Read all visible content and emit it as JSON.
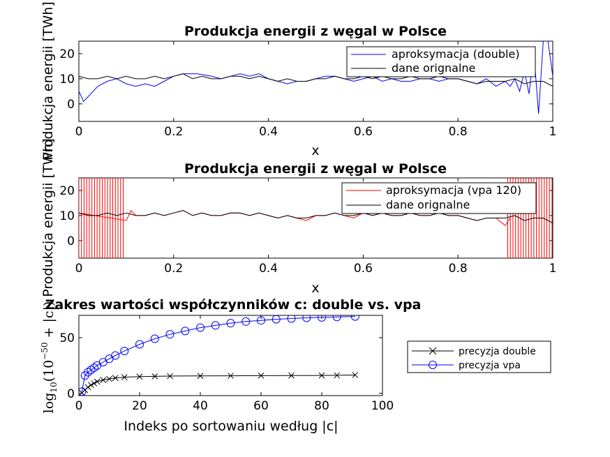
{
  "figure": {
    "background": "#ffffff"
  },
  "chart_data": [
    {
      "type": "line",
      "title": "Produkcja energii z węgal w Polsce",
      "xlabel": "x",
      "ylabel": "Produkcja energii [TWh]",
      "xlim": [
        0,
        1
      ],
      "ylim": [
        -7,
        25
      ],
      "xticks": [
        0,
        0.2,
        0.4,
        0.6,
        0.8,
        1
      ],
      "xtick_labels": [
        "0",
        "0.2",
        "0.4",
        "0.6",
        "0.8",
        "1"
      ],
      "yticks": [
        0,
        10,
        20
      ],
      "ytick_labels": [
        "0",
        "10",
        "20"
      ],
      "legend": "top-right",
      "series": [
        {
          "name": "aproksymacja (double)",
          "color": "#0000ff",
          "x": [
            0,
            0.01,
            0.02,
            0.04,
            0.06,
            0.08,
            0.1,
            0.12,
            0.14,
            0.16,
            0.18,
            0.2,
            0.22,
            0.25,
            0.28,
            0.3,
            0.32,
            0.34,
            0.36,
            0.38,
            0.4,
            0.42,
            0.44,
            0.46,
            0.48,
            0.5,
            0.52,
            0.54,
            0.56,
            0.58,
            0.6,
            0.62,
            0.64,
            0.66,
            0.68,
            0.7,
            0.72,
            0.74,
            0.76,
            0.78,
            0.8,
            0.82,
            0.84,
            0.86,
            0.88,
            0.9,
            0.91,
            0.92,
            0.93,
            0.94,
            0.95,
            0.96,
            0.97,
            0.98,
            0.99,
            1.0
          ],
          "y": [
            5,
            1,
            3,
            7,
            9,
            10,
            8,
            7,
            8,
            7,
            9,
            11,
            12,
            12,
            11,
            10,
            11,
            12,
            11,
            12,
            10,
            9,
            8,
            9,
            9,
            10,
            11,
            11,
            10,
            9,
            10,
            11,
            9,
            10,
            9,
            9,
            10,
            10,
            9,
            10,
            10,
            9,
            8,
            10,
            7,
            9,
            7,
            10,
            5,
            13,
            4,
            21,
            -4,
            25,
            25,
            11
          ]
        },
        {
          "name": "dane orignalne",
          "color": "#000000",
          "x": [
            0,
            0.02,
            0.04,
            0.06,
            0.08,
            0.1,
            0.12,
            0.14,
            0.16,
            0.18,
            0.2,
            0.22,
            0.24,
            0.26,
            0.28,
            0.3,
            0.32,
            0.34,
            0.36,
            0.38,
            0.4,
            0.42,
            0.44,
            0.46,
            0.48,
            0.5,
            0.52,
            0.54,
            0.56,
            0.58,
            0.6,
            0.62,
            0.64,
            0.66,
            0.68,
            0.7,
            0.72,
            0.74,
            0.76,
            0.78,
            0.8,
            0.82,
            0.84,
            0.86,
            0.88,
            0.9,
            0.92,
            0.94,
            0.96,
            0.98,
            1.0
          ],
          "y": [
            11,
            10,
            10,
            11,
            10,
            11,
            10,
            10,
            11,
            10,
            11,
            12,
            10,
            11,
            10,
            10,
            11,
            11,
            10,
            11,
            10,
            9,
            10,
            9,
            9,
            10,
            10,
            11,
            10,
            10,
            11,
            10,
            11,
            10,
            10,
            11,
            10,
            10,
            11,
            10,
            10,
            9,
            8,
            9,
            9,
            9,
            10,
            8,
            9,
            9,
            7
          ]
        }
      ]
    },
    {
      "type": "line",
      "title": "Produkcja energii z węgal w Polsce",
      "xlabel": "x",
      "ylabel": "Produkcja energii [TWh]",
      "xlim": [
        0,
        1
      ],
      "ylim": [
        -7,
        25
      ],
      "xticks": [
        0,
        0.2,
        0.4,
        0.6,
        0.8,
        1
      ],
      "xtick_labels": [
        "0",
        "0.2",
        "0.4",
        "0.6",
        "0.8",
        "1"
      ],
      "yticks": [
        0,
        10,
        20
      ],
      "ytick_labels": [
        "0",
        "10",
        "20"
      ],
      "legend": "top-right",
      "series": [
        {
          "name": "aproksymacja (vpa 120)",
          "color": "#ff0000",
          "x": [
            0,
            0.1,
            0.11,
            0.12,
            0.14,
            0.16,
            0.18,
            0.2,
            0.22,
            0.24,
            0.26,
            0.28,
            0.3,
            0.32,
            0.34,
            0.36,
            0.38,
            0.4,
            0.42,
            0.44,
            0.46,
            0.48,
            0.5,
            0.52,
            0.54,
            0.56,
            0.58,
            0.6,
            0.62,
            0.64,
            0.66,
            0.68,
            0.7,
            0.72,
            0.74,
            0.76,
            0.78,
            0.8,
            0.82,
            0.84,
            0.86,
            0.88,
            0.9,
            0.91
          ],
          "y": [
            11,
            8,
            12,
            10,
            10,
            11,
            10,
            11,
            12,
            10,
            11,
            10,
            10,
            11,
            11,
            10,
            11,
            10,
            9,
            10,
            9,
            8,
            10,
            10,
            11,
            10,
            9,
            11,
            10,
            11,
            10,
            10,
            11,
            10,
            10,
            11,
            10,
            10,
            9,
            8,
            9,
            9,
            6,
            9
          ],
          "oscillation_ranges": [
            [
              0,
              0.095
            ],
            [
              0.905,
              1.0
            ]
          ]
        },
        {
          "name": "dane orignalne",
          "color": "#000000",
          "x": [
            0,
            0.02,
            0.04,
            0.06,
            0.08,
            0.1,
            0.12,
            0.14,
            0.16,
            0.18,
            0.2,
            0.22,
            0.24,
            0.26,
            0.28,
            0.3,
            0.32,
            0.34,
            0.36,
            0.38,
            0.4,
            0.42,
            0.44,
            0.46,
            0.48,
            0.5,
            0.52,
            0.54,
            0.56,
            0.58,
            0.6,
            0.62,
            0.64,
            0.66,
            0.68,
            0.7,
            0.72,
            0.74,
            0.76,
            0.78,
            0.8,
            0.82,
            0.84,
            0.86,
            0.88,
            0.9,
            0.92,
            0.94,
            0.96,
            0.98,
            1.0
          ],
          "y": [
            11,
            10,
            10,
            11,
            10,
            11,
            10,
            10,
            11,
            10,
            11,
            12,
            10,
            11,
            10,
            10,
            11,
            11,
            10,
            11,
            10,
            9,
            10,
            9,
            9,
            10,
            10,
            11,
            10,
            10,
            11,
            10,
            11,
            10,
            10,
            11,
            10,
            10,
            11,
            10,
            10,
            9,
            8,
            9,
            9,
            9,
            10,
            8,
            9,
            9,
            7
          ]
        }
      ]
    },
    {
      "type": "line",
      "title": "Zakres wartości współczynników c: double vs. vpa",
      "xlabel": "Indeks po sortowaniu według |c|",
      "ylabel": "log10(10^-50 + |c|)",
      "ylabel_base": "log",
      "ylabel_sub": "10",
      "ylabel_mid": "(10",
      "ylabel_sup": "−50",
      "ylabel_tail": " + |c|)",
      "xlim": [
        0,
        100
      ],
      "ylim": [
        -2,
        70
      ],
      "xticks": [
        0,
        20,
        40,
        60,
        80,
        100
      ],
      "xtick_labels": [
        "0",
        "20",
        "40",
        "60",
        "80",
        "100"
      ],
      "yticks": [
        0,
        50
      ],
      "ytick_labels": [
        "0",
        "50"
      ],
      "legend": "outside-right",
      "series": [
        {
          "name": "precyzja double",
          "color": "#000000",
          "marker": "x",
          "x": [
            1,
            2,
            3,
            4,
            5,
            6,
            8,
            10,
            12,
            15,
            20,
            25,
            30,
            40,
            50,
            60,
            70,
            80,
            85,
            91
          ],
          "y": [
            0.5,
            3,
            5.5,
            7.5,
            9,
            10.5,
            12,
            13,
            13.8,
            14.5,
            15,
            15.3,
            15.5,
            15.7,
            15.8,
            15.9,
            16,
            16.1,
            16.2,
            16.5
          ]
        },
        {
          "name": "precyzja vpa",
          "color": "#0000ff",
          "marker": "o",
          "x": [
            1,
            2,
            3,
            4,
            5,
            6,
            8,
            10,
            12,
            15,
            20,
            25,
            30,
            35,
            40,
            45,
            50,
            55,
            60,
            65,
            70,
            75,
            80,
            85,
            91
          ],
          "y": [
            1.5,
            16,
            19,
            21,
            23,
            25,
            28,
            31,
            34,
            38,
            44,
            49,
            53,
            56,
            59,
            61,
            63,
            64.5,
            65.5,
            66.5,
            67.2,
            67.8,
            68.2,
            68.6,
            69
          ]
        }
      ]
    }
  ]
}
